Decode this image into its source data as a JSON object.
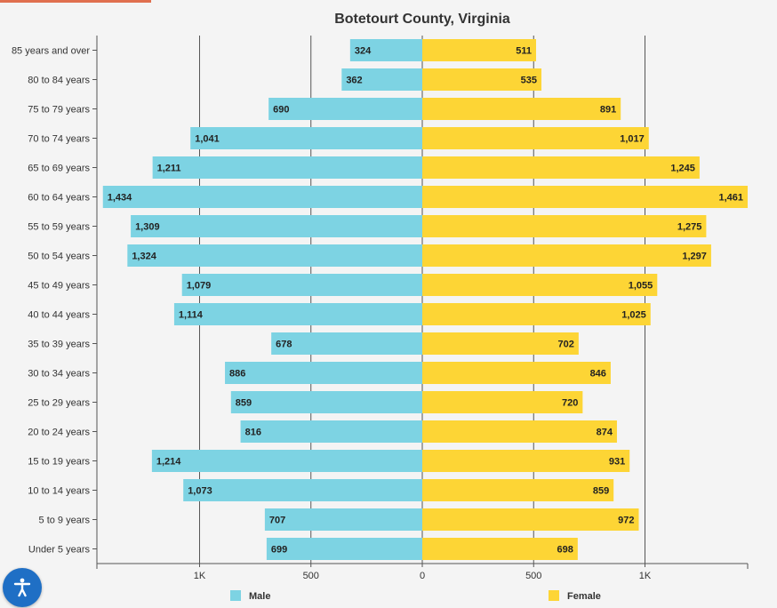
{
  "accessibility": {
    "icon": "accessibility-icon"
  },
  "chart_data": {
    "type": "bar",
    "orientation": "horizontal",
    "layout": "population-pyramid",
    "title": "Botetourt County, Virginia",
    "categories": [
      "85 years and over",
      "80 to 84 years",
      "75 to 79 years",
      "70 to 74 years",
      "65 to 69 years",
      "60 to 64 years",
      "55 to 59 years",
      "50 to 54 years",
      "45 to 49 years",
      "40 to 44 years",
      "35 to 39 years",
      "30 to 34 years",
      "25 to 29 years",
      "20 to 24 years",
      "15 to 19 years",
      "10 to 14 years",
      "5 to 9 years",
      "Under 5 years"
    ],
    "series": [
      {
        "name": "Male",
        "color": "#7dd3e3",
        "side": "left",
        "values": [
          324,
          362,
          690,
          1041,
          1211,
          1434,
          1309,
          1324,
          1079,
          1114,
          678,
          886,
          859,
          816,
          1214,
          1073,
          707,
          699
        ],
        "labels": [
          "324",
          "362",
          "690",
          "1,041",
          "1,211",
          "1,434",
          "1,309",
          "1,324",
          "1,079",
          "1,114",
          "678",
          "886",
          "859",
          "816",
          "1,214",
          "1,073",
          "707",
          "699"
        ]
      },
      {
        "name": "Female",
        "color": "#fdd535",
        "side": "right",
        "values": [
          511,
          535,
          891,
          1017,
          1245,
          1461,
          1275,
          1297,
          1055,
          1025,
          702,
          846,
          720,
          874,
          931,
          859,
          972,
          698
        ],
        "labels": [
          "511",
          "535",
          "891",
          "1,017",
          "1,245",
          "1,461",
          "1,275",
          "1,297",
          "1,055",
          "1,025",
          "702",
          "846",
          "720",
          "874",
          "931",
          "859",
          "972",
          "698"
        ]
      }
    ],
    "xlim": [
      -1461,
      1461
    ],
    "ticks": [
      {
        "value": -1000,
        "label": "1K"
      },
      {
        "value": -500,
        "label": "500"
      },
      {
        "value": 0,
        "label": "0"
      },
      {
        "value": 500,
        "label": "500"
      },
      {
        "value": 1000,
        "label": "1K"
      }
    ],
    "grid": true,
    "legend_position": "bottom"
  }
}
